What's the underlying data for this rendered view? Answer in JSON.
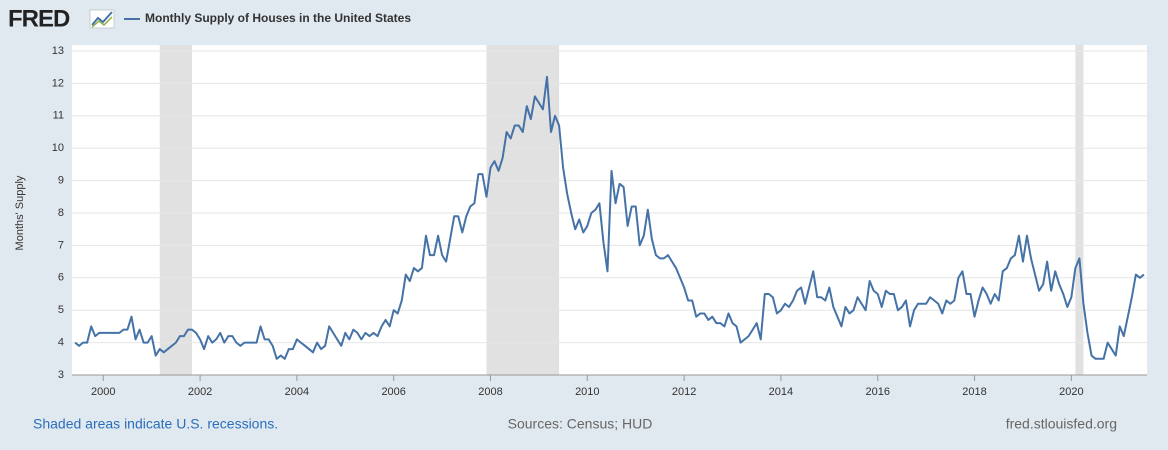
{
  "chart_data": {
    "type": "line",
    "logo": "FRED",
    "title": "Monthly Supply of Houses in the United States",
    "y_label": "Months' Supply",
    "footer_left": "Shaded areas indicate U.S. recessions.",
    "footer_center": "Sources: Census; HUD",
    "footer_right": "fred.stlouisfed.org",
    "xlim": [
      1999.354,
      2021.563
    ],
    "xticks": [
      2000,
      2002,
      2004,
      2006,
      2008,
      2010,
      2012,
      2014,
      2016,
      2018,
      2020
    ],
    "ylim": [
      3,
      13
    ],
    "yticks": [
      3,
      4,
      5,
      6,
      7,
      8,
      9,
      10,
      11,
      12,
      13
    ],
    "grid": true,
    "recessions": [
      [
        2001.167,
        2001.833
      ],
      [
        2007.917,
        2009.417
      ],
      [
        2020.083,
        2020.25
      ]
    ],
    "recession_color": "#e1e1e1",
    "x": [
      1999.417,
      1999.5,
      1999.583,
      1999.667,
      1999.75,
      1999.833,
      1999.917,
      2000,
      2000.083,
      2000.167,
      2000.25,
      2000.333,
      2000.417,
      2000.5,
      2000.583,
      2000.667,
      2000.75,
      2000.833,
      2000.917,
      2001,
      2001.083,
      2001.167,
      2001.25,
      2001.333,
      2001.417,
      2001.5,
      2001.583,
      2001.667,
      2001.75,
      2001.833,
      2001.917,
      2002,
      2002.083,
      2002.167,
      2002.25,
      2002.333,
      2002.417,
      2002.5,
      2002.583,
      2002.667,
      2002.75,
      2002.833,
      2002.917,
      2003,
      2003.083,
      2003.167,
      2003.25,
      2003.333,
      2003.417,
      2003.5,
      2003.583,
      2003.667,
      2003.75,
      2003.833,
      2003.917,
      2004,
      2004.083,
      2004.167,
      2004.25,
      2004.333,
      2004.417,
      2004.5,
      2004.583,
      2004.667,
      2004.75,
      2004.833,
      2004.917,
      2005,
      2005.083,
      2005.167,
      2005.25,
      2005.333,
      2005.417,
      2005.5,
      2005.583,
      2005.667,
      2005.75,
      2005.833,
      2005.917,
      2006,
      2006.083,
      2006.167,
      2006.25,
      2006.333,
      2006.417,
      2006.5,
      2006.583,
      2006.667,
      2006.75,
      2006.833,
      2006.917,
      2007,
      2007.083,
      2007.167,
      2007.25,
      2007.333,
      2007.417,
      2007.5,
      2007.583,
      2007.667,
      2007.75,
      2007.833,
      2007.917,
      2008,
      2008.083,
      2008.167,
      2008.25,
      2008.333,
      2008.417,
      2008.5,
      2008.583,
      2008.667,
      2008.75,
      2008.833,
      2008.917,
      2009,
      2009.083,
      2009.167,
      2009.25,
      2009.333,
      2009.417,
      2009.5,
      2009.583,
      2009.667,
      2009.75,
      2009.833,
      2009.917,
      2010,
      2010.083,
      2010.167,
      2010.25,
      2010.333,
      2010.417,
      2010.5,
      2010.583,
      2010.667,
      2010.75,
      2010.833,
      2010.917,
      2011,
      2011.083,
      2011.167,
      2011.25,
      2011.333,
      2011.417,
      2011.5,
      2011.583,
      2011.667,
      2011.75,
      2011.833,
      2011.917,
      2012,
      2012.083,
      2012.167,
      2012.25,
      2012.333,
      2012.417,
      2012.5,
      2012.583,
      2012.667,
      2012.75,
      2012.833,
      2012.917,
      2013,
      2013.083,
      2013.167,
      2013.25,
      2013.333,
      2013.417,
      2013.5,
      2013.583,
      2013.667,
      2013.75,
      2013.833,
      2013.917,
      2014,
      2014.083,
      2014.167,
      2014.25,
      2014.333,
      2014.417,
      2014.5,
      2014.583,
      2014.667,
      2014.75,
      2014.833,
      2014.917,
      2015,
      2015.083,
      2015.167,
      2015.25,
      2015.333,
      2015.417,
      2015.5,
      2015.583,
      2015.667,
      2015.75,
      2015.833,
      2015.917,
      2016,
      2016.083,
      2016.167,
      2016.25,
      2016.333,
      2016.417,
      2016.5,
      2016.583,
      2016.667,
      2016.75,
      2016.833,
      2016.917,
      2017,
      2017.083,
      2017.167,
      2017.25,
      2017.333,
      2017.417,
      2017.5,
      2017.583,
      2017.667,
      2017.75,
      2017.833,
      2017.917,
      2018,
      2018.083,
      2018.167,
      2018.25,
      2018.333,
      2018.417,
      2018.5,
      2018.583,
      2018.667,
      2018.75,
      2018.833,
      2018.917,
      2019,
      2019.083,
      2019.167,
      2019.25,
      2019.333,
      2019.417,
      2019.5,
      2019.583,
      2019.667,
      2019.75,
      2019.833,
      2019.917,
      2020,
      2020.083,
      2020.167,
      2020.25,
      2020.333,
      2020.417,
      2020.5,
      2020.583,
      2020.667,
      2020.75,
      2020.833,
      2020.917,
      2021,
      2021.083,
      2021.167,
      2021.25,
      2021.333,
      2021.417,
      2021.5
    ],
    "series": [
      {
        "name": "Monthly Supply of Houses in the United States",
        "color": "#4572a7",
        "values": [
          4.0,
          3.9,
          4.0,
          4.0,
          4.5,
          4.2,
          4.3,
          4.3,
          4.3,
          4.3,
          4.3,
          4.3,
          4.4,
          4.4,
          4.8,
          4.1,
          4.4,
          4.0,
          4.0,
          4.2,
          3.6,
          3.8,
          3.7,
          3.8,
          3.9,
          4.0,
          4.2,
          4.2,
          4.4,
          4.4,
          4.3,
          4.1,
          3.8,
          4.2,
          4.0,
          4.1,
          4.3,
          4.0,
          4.2,
          4.2,
          4.0,
          3.9,
          4.0,
          4.0,
          4.0,
          4.0,
          4.5,
          4.1,
          4.1,
          3.9,
          3.5,
          3.6,
          3.5,
          3.8,
          3.8,
          4.1,
          4.0,
          3.9,
          3.8,
          3.7,
          4.0,
          3.8,
          3.9,
          4.5,
          4.3,
          4.1,
          3.9,
          4.3,
          4.1,
          4.4,
          4.3,
          4.1,
          4.3,
          4.2,
          4.3,
          4.2,
          4.5,
          4.7,
          4.5,
          5.0,
          4.9,
          5.3,
          6.1,
          5.9,
          6.3,
          6.2,
          6.3,
          7.3,
          6.7,
          6.7,
          7.3,
          6.7,
          6.5,
          7.2,
          7.9,
          7.9,
          7.4,
          7.9,
          8.2,
          8.3,
          9.2,
          9.2,
          8.5,
          9.4,
          9.6,
          9.3,
          9.7,
          10.5,
          10.3,
          10.7,
          10.7,
          10.5,
          11.3,
          10.9,
          11.6,
          11.4,
          11.2,
          12.2,
          10.5,
          11.0,
          10.7,
          9.4,
          8.6,
          8.0,
          7.5,
          7.8,
          7.4,
          7.6,
          8.0,
          8.1,
          8.3,
          7.1,
          6.2,
          9.3,
          8.3,
          8.9,
          8.8,
          7.6,
          8.2,
          8.2,
          7.0,
          7.3,
          8.1,
          7.2,
          6.7,
          6.6,
          6.6,
          6.7,
          6.5,
          6.3,
          6.0,
          5.7,
          5.3,
          5.3,
          4.8,
          4.9,
          4.9,
          4.7,
          4.8,
          4.6,
          4.6,
          4.5,
          4.9,
          4.6,
          4.5,
          4.0,
          4.1,
          4.2,
          4.4,
          4.6,
          4.1,
          5.5,
          5.5,
          5.4,
          4.9,
          5.0,
          5.2,
          5.1,
          5.3,
          5.6,
          5.7,
          5.2,
          5.7,
          6.2,
          5.4,
          5.4,
          5.3,
          5.7,
          5.1,
          4.8,
          4.5,
          5.1,
          4.9,
          5.0,
          5.4,
          5.2,
          5.0,
          5.9,
          5.6,
          5.5,
          5.1,
          5.6,
          5.5,
          5.5,
          5.0,
          5.1,
          5.3,
          4.5,
          5.0,
          5.2,
          5.2,
          5.2,
          5.4,
          5.3,
          5.2,
          4.9,
          5.3,
          5.2,
          5.3,
          6.0,
          6.2,
          5.5,
          5.5,
          4.8,
          5.3,
          5.7,
          5.5,
          5.2,
          5.5,
          5.3,
          6.2,
          6.3,
          6.6,
          6.7,
          7.3,
          6.5,
          7.3,
          6.6,
          6.1,
          5.6,
          5.8,
          6.5,
          5.6,
          6.2,
          5.8,
          5.5,
          5.1,
          5.4,
          6.3,
          6.6,
          5.2,
          4.3,
          3.6,
          3.5,
          3.5,
          3.5,
          4.0,
          3.8,
          3.6,
          4.5,
          4.2,
          4.8,
          5.4,
          6.1,
          6.0,
          6.1
        ]
      }
    ]
  }
}
